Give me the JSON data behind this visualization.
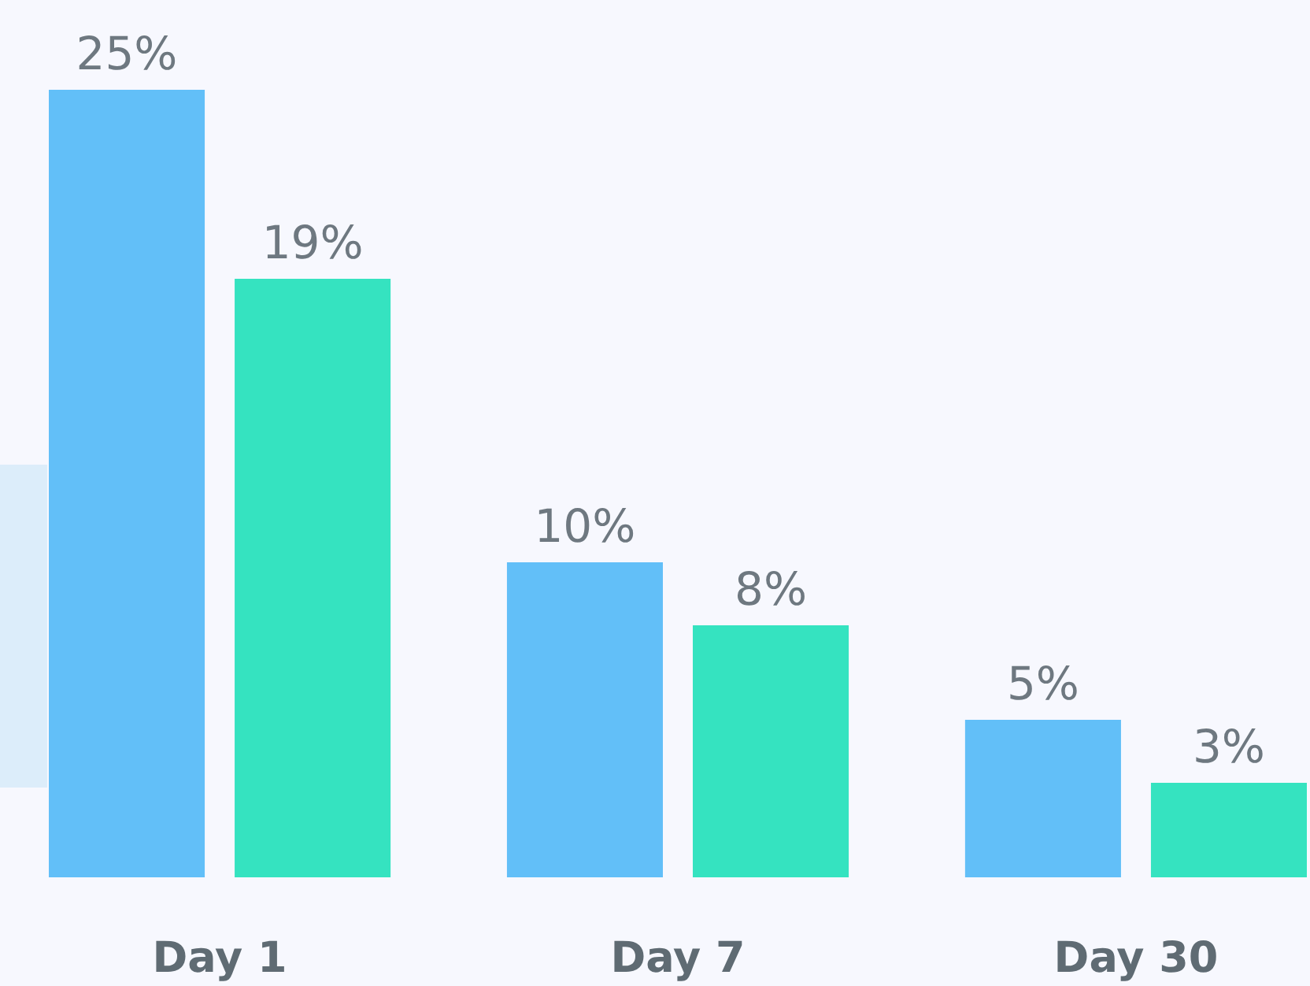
{
  "chart_data": {
    "type": "bar",
    "categories": [
      "Day 1",
      "Day 7",
      "Day 30"
    ],
    "series": [
      {
        "color": "#62bff8",
        "values": [
          25,
          10,
          5
        ],
        "value_labels": [
          "25%",
          "10%",
          "5%"
        ]
      },
      {
        "color": "#35e3c0",
        "values": [
          19,
          8,
          3
        ],
        "value_labels": [
          "19%",
          "8%",
          "3%"
        ]
      }
    ],
    "tick_labels": "x"
  }
}
